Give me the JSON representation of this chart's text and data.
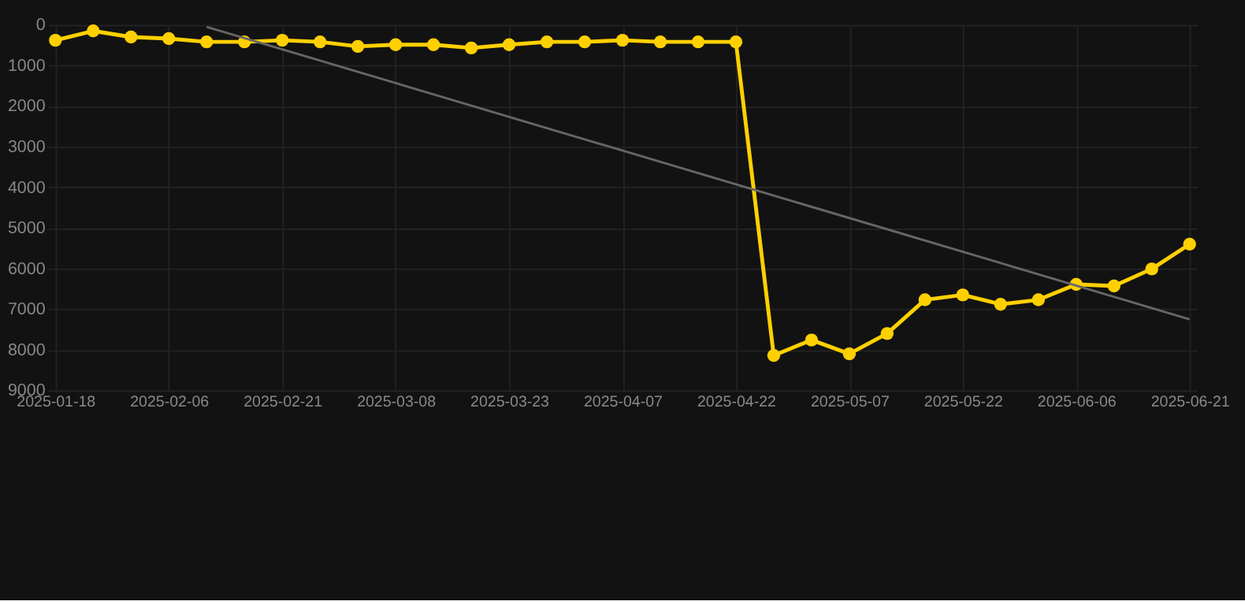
{
  "chart_data": {
    "type": "line",
    "categories": [
      "2025-01-18",
      null,
      null,
      "2025-02-06",
      null,
      null,
      "2025-02-21",
      null,
      null,
      "2025-03-08",
      null,
      null,
      "2025-03-23",
      null,
      null,
      "2025-04-07",
      null,
      null,
      "2025-04-22",
      null,
      null,
      "2025-05-07",
      null,
      null,
      "2025-05-22",
      null,
      null,
      "2025-06-06",
      null,
      null,
      "2025-06-21"
    ],
    "series": [
      {
        "color": "#ffd000",
        "marker": "circle",
        "values": [
          380,
          150,
          300,
          340,
          420,
          420,
          380,
          420,
          530,
          490,
          490,
          570,
          490,
          420,
          420,
          380,
          420,
          420,
          420,
          8140,
          7760,
          8100,
          7600,
          6770,
          6650,
          6880,
          6770,
          6390,
          6430,
          6010,
          5400
        ]
      },
      {
        "type": "line",
        "color": "#666666",
        "marker": "none",
        "values": [
          null,
          null,
          null,
          null,
          50,
          null,
          null,
          null,
          null,
          null,
          null,
          null,
          null,
          null,
          null,
          null,
          null,
          null,
          null,
          null,
          null,
          null,
          null,
          null,
          null,
          null,
          null,
          null,
          null,
          null,
          7250
        ]
      }
    ],
    "ylim": [
      9000,
      0
    ],
    "yticks": [
      0,
      1000,
      2000,
      3000,
      4000,
      5000,
      6000,
      7000,
      8000,
      9000
    ],
    "grid": true,
    "line_style": "solid"
  }
}
